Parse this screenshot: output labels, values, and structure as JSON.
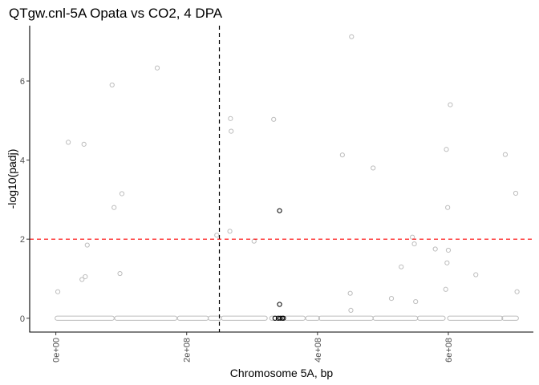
{
  "chart_data": {
    "type": "scatter",
    "title": "QTgw.cnl-5A Opata vs CO2, 4 DPA",
    "xlabel": "Chromosome 5A, bp",
    "ylabel": "-log10(padj)",
    "xlim": [
      -40000000.0,
      730000000.0
    ],
    "ylim": [
      -0.35,
      7.4
    ],
    "x_ticks": [
      0,
      200000000,
      400000000,
      600000000
    ],
    "x_tick_labels": [
      "0e+00",
      "2e+08",
      "4e+08",
      "6e+08"
    ],
    "y_ticks": [
      0,
      2,
      4,
      6
    ],
    "y_tick_labels": [
      "0",
      "2",
      "4",
      "6"
    ],
    "grid": false,
    "legend": "none",
    "colors": {
      "background_points": "#bdbdbd",
      "highlight_points": "#000000",
      "vline": "#000000",
      "hline": "#ff0000"
    },
    "reference_lines": {
      "vertical_x": 250000000,
      "horizontal_y": 2
    },
    "background_points": {
      "x": [
        3000000.0,
        19000000.0,
        40000000.0,
        43000000.0,
        45000000.0,
        48000000.0,
        86000000.0,
        89000000.0,
        98000000.0,
        101000000.0,
        155000000.0,
        246000000.0,
        266000000.0,
        267000000.0,
        268000000.0,
        303000000.0,
        333000000.0,
        438000000.0,
        450000000.0,
        451000000.0,
        452000000.0,
        485000000.0,
        513000000.0,
        528000000.0,
        545000000.0,
        548000000.0,
        550000000.0,
        580000000.0,
        596000000.0,
        597000000.0,
        598000000.0,
        599000000.0,
        600000000.0,
        603000000.0,
        642000000.0,
        687000000.0,
        703000000.0,
        705000000.0
      ],
      "y": [
        0.67,
        4.45,
        0.98,
        4.4,
        1.05,
        1.85,
        5.9,
        2.8,
        1.13,
        3.15,
        6.33,
        2.1,
        2.2,
        5.05,
        4.73,
        1.95,
        5.03,
        4.13,
        0.63,
        0.2,
        7.12,
        3.8,
        0.5,
        1.3,
        2.05,
        1.88,
        0.42,
        1.75,
        0.73,
        4.27,
        1.4,
        2.8,
        1.72,
        5.4,
        1.1,
        4.14,
        3.16,
        0.67
      ]
    },
    "highlight_points": {
      "x": [
        342000000.0,
        342000000.0
      ],
      "y": [
        2.72,
        0.35
      ]
    },
    "baseline": {
      "y": 0,
      "segments": [
        [
          2000000.0,
          86000000.0
        ],
        [
          93000000.0,
          182000000.0
        ],
        [
          189000000.0,
          230000000.0
        ],
        [
          236000000.0,
          250000000.0
        ],
        [
          256000000.0,
          320000000.0
        ],
        [
          330000000.0,
          340000000.0
        ],
        [
          352000000.0,
          378000000.0
        ],
        [
          385000000.0,
          400000000.0
        ],
        [
          405000000.0,
          482000000.0
        ],
        [
          488000000.0,
          550000000.0
        ],
        [
          556000000.0,
          592000000.0
        ],
        [
          602000000.0,
          680000000.0
        ],
        [
          685000000.0,
          704000000.0
        ]
      ],
      "highlight_x": [
        335000000.0,
        340000000.0,
        343000000.0,
        346000000.0,
        348000000.0
      ]
    }
  }
}
